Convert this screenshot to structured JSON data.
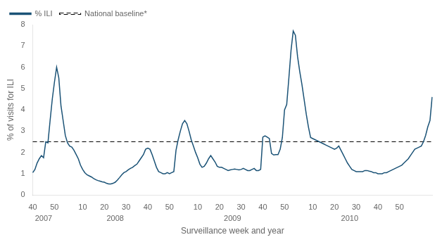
{
  "chart_data": {
    "type": "line",
    "xlabel": "Surveillance week and year",
    "ylabel": "% of visits for ILI",
    "categories": [
      "40",
      null,
      null,
      null,
      null,
      null,
      null,
      null,
      null,
      null,
      "50",
      null,
      null,
      null,
      null,
      null,
      null,
      null,
      null,
      null,
      null,
      null,
      null,
      "10",
      null,
      null,
      null,
      null,
      null,
      null,
      null,
      null,
      null,
      "20",
      null,
      null,
      null,
      null,
      null,
      null,
      null,
      null,
      null,
      "30",
      null,
      null,
      null,
      null,
      null,
      null,
      null,
      null,
      null,
      "40",
      null,
      null,
      null,
      null,
      null,
      null,
      null,
      null,
      null,
      "50",
      null,
      null,
      null,
      null,
      null,
      null,
      null,
      null,
      null,
      null,
      null,
      null,
      "10",
      null,
      null,
      null,
      null,
      null,
      null,
      null,
      null,
      null,
      "20",
      null,
      null,
      null,
      null,
      null,
      null,
      null,
      null,
      null,
      "30",
      null,
      null,
      null,
      null,
      null,
      null,
      null,
      null,
      null,
      "40",
      null,
      null,
      null,
      null,
      null,
      null,
      null,
      null,
      null,
      "50",
      null,
      null,
      null,
      null,
      null,
      null,
      null,
      null,
      null,
      null,
      null,
      null,
      "10",
      null,
      null,
      null,
      null,
      null,
      null,
      null,
      null,
      null,
      "20",
      null,
      null,
      null,
      null,
      null,
      null,
      null,
      null,
      null,
      "30",
      null,
      null,
      null,
      null,
      null,
      null,
      null,
      null,
      null,
      "40",
      null,
      null,
      null,
      null,
      null,
      null,
      null,
      null,
      null,
      "50",
      null,
      null,
      null,
      null,
      null,
      null,
      null,
      null,
      null,
      null,
      null,
      null,
      null,
      null,
      null
    ],
    "year_labels": [
      null,
      null,
      null,
      null,
      null,
      "2007",
      null,
      null,
      null,
      null,
      null,
      null,
      null,
      null,
      null,
      null,
      null,
      null,
      null,
      null,
      null,
      null,
      null,
      null,
      null,
      null,
      null,
      null,
      null,
      null,
      null,
      null,
      null,
      null,
      null,
      null,
      null,
      null,
      "2008",
      null,
      null,
      null,
      null,
      null,
      null,
      null,
      null,
      null,
      null,
      null,
      null,
      null,
      null,
      null,
      null,
      null,
      null,
      null,
      null,
      null,
      null,
      null,
      null,
      null,
      null,
      null,
      null,
      null,
      null,
      null,
      null,
      null,
      null,
      null,
      null,
      null,
      null,
      null,
      null,
      null,
      null,
      null,
      null,
      null,
      null,
      null,
      null,
      null,
      null,
      null,
      null,
      null,
      "2009",
      null,
      null,
      null,
      null,
      null,
      null,
      null,
      null,
      null,
      null,
      null,
      null,
      null,
      null,
      null,
      null,
      null,
      null,
      null,
      null,
      null,
      null,
      null,
      null,
      null,
      null,
      null,
      null,
      null,
      null,
      null,
      null,
      null,
      null,
      null,
      null,
      null,
      null,
      null,
      null,
      null,
      null,
      null,
      null,
      null,
      null,
      null,
      null,
      null,
      null,
      null,
      null,
      null,
      "2010",
      null,
      null,
      null,
      null,
      null,
      null,
      null,
      null,
      null,
      null,
      null,
      null,
      null,
      null,
      null,
      null,
      null,
      null,
      null,
      null,
      null,
      null,
      null,
      null,
      null,
      null,
      null,
      null,
      null,
      null,
      null,
      null,
      null,
      null,
      null,
      null,
      null,
      null
    ],
    "series": [
      {
        "name": "% ILI",
        "color": "#1a5276",
        "values": [
          1.05,
          1.2,
          1.5,
          1.7,
          1.85,
          1.75,
          2.5,
          2.45,
          3.5,
          4.5,
          5.3,
          6.0,
          5.5,
          4.2,
          3.5,
          2.8,
          2.45,
          2.3,
          2.25,
          2.1,
          1.9,
          1.7,
          1.4,
          1.2,
          1.05,
          0.95,
          0.9,
          0.85,
          0.78,
          0.72,
          0.68,
          0.65,
          0.62,
          0.6,
          0.55,
          0.52,
          0.52,
          0.55,
          0.6,
          0.7,
          0.82,
          0.95,
          1.05,
          1.1,
          1.18,
          1.25,
          1.3,
          1.38,
          1.45,
          1.6,
          1.75,
          1.9,
          2.15,
          2.2,
          2.15,
          1.9,
          1.6,
          1.3,
          1.1,
          1.05,
          1.0,
          1.0,
          1.05,
          1.0,
          1.05,
          1.1,
          2.1,
          2.6,
          3.0,
          3.35,
          3.5,
          3.35,
          3.0,
          2.6,
          2.3,
          2.0,
          1.75,
          1.45,
          1.3,
          1.35,
          1.5,
          1.7,
          1.85,
          1.7,
          1.55,
          1.35,
          1.3,
          1.3,
          1.25,
          1.2,
          1.15,
          1.18,
          1.2,
          1.22,
          1.2,
          1.18,
          1.2,
          1.25,
          1.2,
          1.15,
          1.15,
          1.2,
          1.25,
          1.15,
          1.15,
          1.2,
          2.72,
          2.78,
          2.72,
          2.65,
          1.95,
          1.88,
          1.9,
          1.9,
          2.15,
          2.7,
          4.0,
          4.25,
          5.5,
          6.8,
          7.7,
          7.5,
          6.5,
          5.8,
          5.2,
          4.5,
          3.8,
          3.2,
          2.7,
          2.65,
          2.6,
          2.55,
          2.5,
          2.45,
          2.4,
          2.35,
          2.3,
          2.25,
          2.2,
          2.15,
          2.2,
          2.3,
          2.1,
          1.9,
          1.7,
          1.5,
          1.35,
          1.2,
          1.15,
          1.1,
          1.1,
          1.1,
          1.1,
          1.15,
          1.15,
          1.12,
          1.1,
          1.05,
          1.05,
          1.0,
          1.0,
          1.0,
          1.05,
          1.05,
          1.1,
          1.15,
          1.2,
          1.25,
          1.3,
          1.35,
          1.4,
          1.5,
          1.6,
          1.7,
          1.85,
          2.0,
          2.15,
          2.2,
          2.25,
          2.3,
          2.5,
          2.8,
          3.2,
          3.5,
          4.6
        ]
      }
    ],
    "baseline": {
      "name": "National baseline*",
      "value": 2.5,
      "color": "#000000",
      "line_style": "dashed"
    },
    "ylim": [
      0,
      8
    ],
    "yticks": [
      0,
      1,
      2,
      3,
      4,
      5,
      6,
      7,
      8
    ],
    "grid": false,
    "legend": "upper left"
  }
}
